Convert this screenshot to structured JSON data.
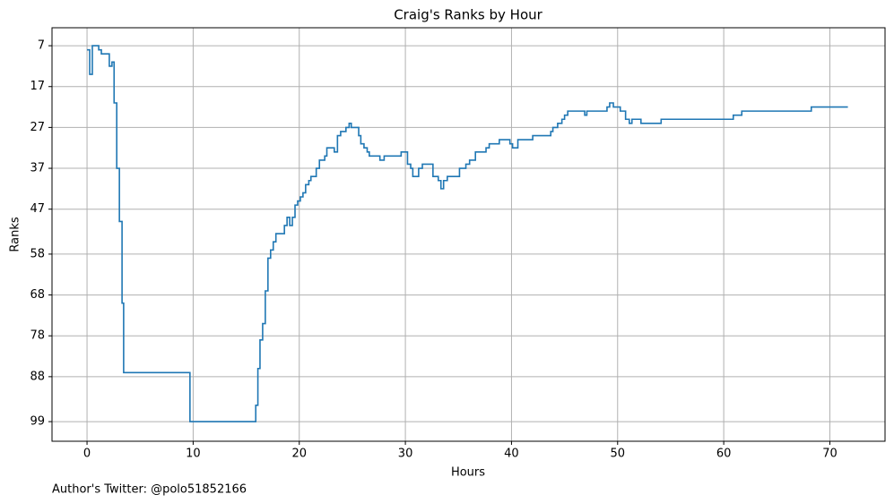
{
  "chart_data": {
    "type": "step",
    "title": "Craig's Ranks by Hour",
    "xlabel": "Hours",
    "ylabel": "Ranks",
    "footnote": "Author's Twitter: @polo51852166",
    "color": "#1f77b4",
    "grid": true,
    "y_inverted": true,
    "xlim": [
      -3.3,
      75.2
    ],
    "xticks": [
      0,
      10,
      20,
      30,
      40,
      50,
      60,
      70
    ],
    "ylim": [
      103.8,
      2.6
    ],
    "yticks": [
      7,
      17,
      27,
      37,
      47,
      58,
      68,
      78,
      88,
      99
    ],
    "x": [
      0,
      0.25,
      0.5,
      1.1,
      1.35,
      2.1,
      2.35,
      2.55,
      2.8,
      3.05,
      3.3,
      3.45,
      9.7,
      15.9,
      16.1,
      16.3,
      16.55,
      16.8,
      17.05,
      17.3,
      17.55,
      17.8,
      18.6,
      18.85,
      19.1,
      19.35,
      19.6,
      19.85,
      20.1,
      20.35,
      20.6,
      20.9,
      21.1,
      21.6,
      21.9,
      22.4,
      22.6,
      23.3,
      23.6,
      23.9,
      24.4,
      24.7,
      24.9,
      25.6,
      25.8,
      26.1,
      26.4,
      26.6,
      27.6,
      28,
      29.6,
      30.2,
      30.5,
      30.7,
      31.25,
      31.6,
      32.6,
      33.1,
      33.35,
      33.6,
      33.95,
      35.1,
      35.7,
      36.05,
      36.6,
      37.6,
      37.9,
      38.85,
      39.85,
      40.1,
      40.6,
      42,
      43.7,
      43.9,
      44.35,
      44.75,
      45,
      45.3,
      46.9,
      47.1,
      49,
      49.25,
      49.6,
      50.25,
      50.75,
      51.1,
      51.35,
      52.2,
      54.1,
      60.9,
      61.7,
      68.25,
      71.7
    ],
    "values": [
      8,
      14,
      7,
      8,
      9,
      12,
      11,
      21,
      37,
      50,
      70,
      87,
      99,
      95,
      86,
      79,
      75,
      67,
      59,
      57,
      55,
      53,
      51,
      49,
      51,
      49,
      46,
      45,
      44,
      43,
      41,
      40,
      39,
      37,
      35,
      34,
      32,
      33,
      29,
      28,
      27,
      26,
      27,
      29,
      31,
      32,
      33,
      34,
      35,
      34,
      33,
      36,
      37,
      39,
      37,
      36,
      39,
      40,
      42,
      40,
      39,
      37,
      36,
      35,
      33,
      32,
      31,
      30,
      31,
      32,
      30,
      29,
      28,
      27,
      26,
      25,
      24,
      23,
      24,
      23,
      22,
      21,
      22,
      23,
      25,
      26,
      25,
      26,
      25,
      24,
      23,
      22,
      22
    ]
  }
}
